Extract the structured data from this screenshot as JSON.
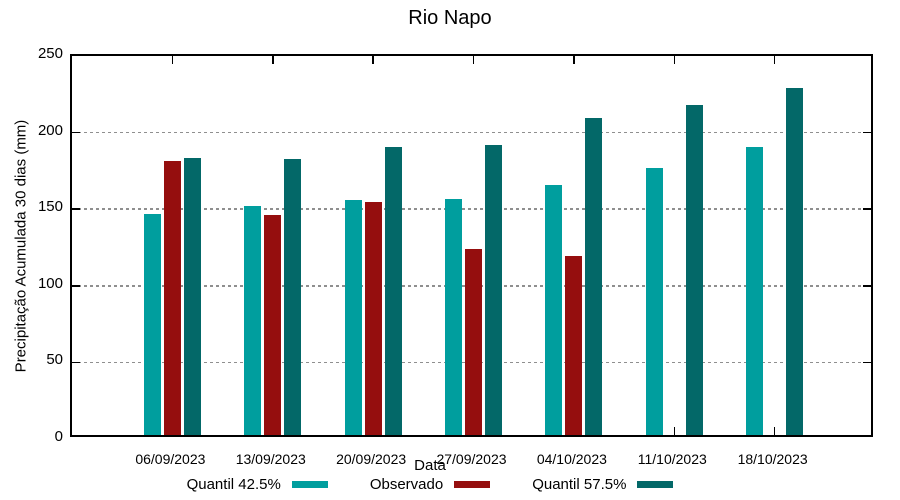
{
  "title": "Rio Napo",
  "y_axis": {
    "label": "Precipitação Acumulada 30 dias (mm)",
    "tick_labels": [
      "0",
      "50",
      "100",
      "150",
      "200",
      "250"
    ]
  },
  "x_axis": {
    "label": "Data",
    "tick_labels": [
      "06/09/2023",
      "13/09/2023",
      "20/09/2023",
      "27/09/2023",
      "04/10/2023",
      "11/10/2023",
      "18/10/2023"
    ]
  },
  "legend": {
    "position": "bottom-center",
    "entries": [
      {
        "label": "Quantil 42.5%",
        "color": "#009E9E"
      },
      {
        "label": "Observado",
        "color": "#950E0E"
      },
      {
        "label": "Quantil 57.5%",
        "color": "#036868"
      }
    ]
  },
  "chart_data": {
    "type": "bar",
    "title": "Rio Napo",
    "xlabel": "Data",
    "ylabel": "Precipitação Acumulada 30 dias (mm)",
    "ylim": [
      0,
      250
    ],
    "ytick_values": [
      0,
      50,
      100,
      150,
      200,
      250
    ],
    "gridline_values": [
      50,
      100,
      150,
      200
    ],
    "grid": true,
    "legend_position": "bottom",
    "categories": [
      "06/09/2023",
      "13/09/2023",
      "20/09/2023",
      "27/09/2023",
      "04/10/2023",
      "11/10/2023",
      "18/10/2023"
    ],
    "series": [
      {
        "name": "Quantil 42.5%",
        "color": "#009E9E",
        "values": [
          146,
          151,
          155,
          156,
          165,
          176,
          190
        ]
      },
      {
        "name": "Observado",
        "color": "#950E0E",
        "values": [
          181,
          145,
          154,
          123,
          118,
          null,
          null
        ]
      },
      {
        "name": "Quantil 57.5%",
        "color": "#036868",
        "values": [
          183,
          182,
          190,
          191,
          209,
          218,
          229
        ]
      }
    ],
    "colors": {
      "background": "#ffffff",
      "border": "#000000",
      "grid": "#8f8f8f"
    }
  }
}
